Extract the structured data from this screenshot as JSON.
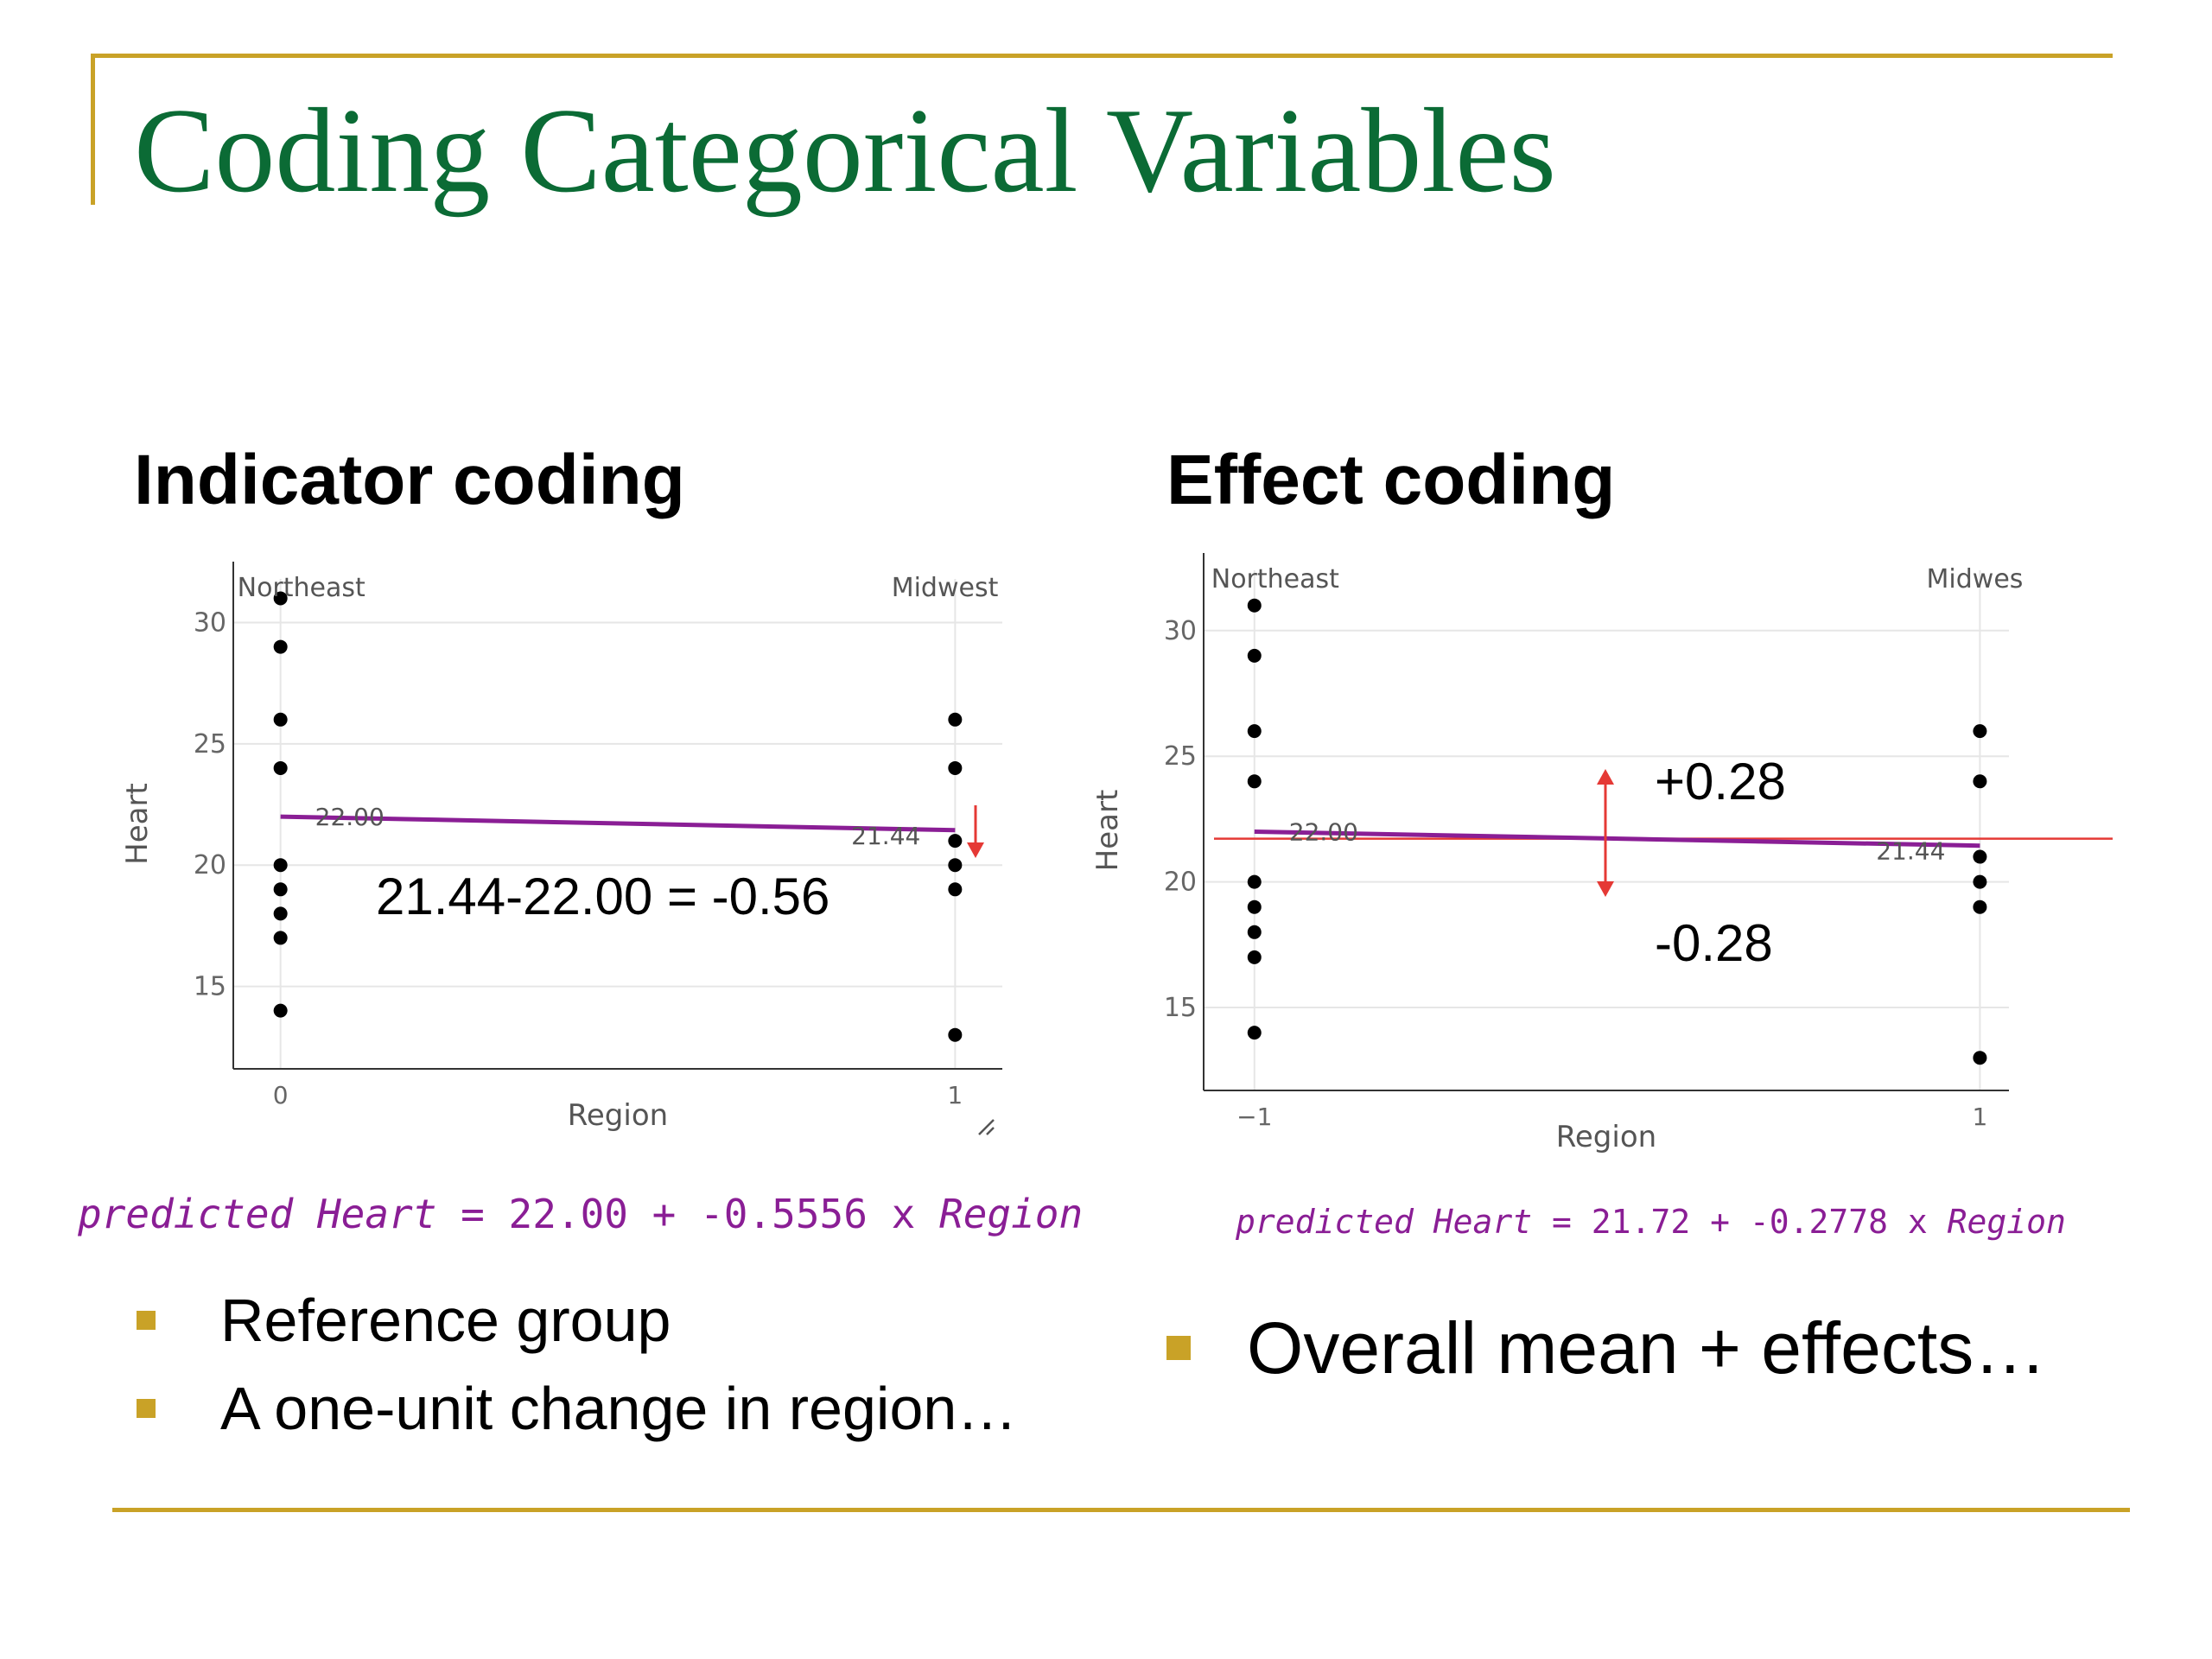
{
  "slide": {
    "title": "Coding Categorical Variables",
    "accent_color": "#c9a227",
    "title_color": "#0b6b35"
  },
  "left": {
    "heading": "Indicator coding",
    "formula": {
      "prefix": "predicted Heart",
      "middle": " = 22.00 + -0.5556 x ",
      "suffix": "Region",
      "color": "#8a1e95"
    },
    "bullets": [
      "Reference group",
      "A one-unit change in region…"
    ],
    "annotation": "21.44-22.00 = -0.56",
    "resize_icon": "resize-handle-icon"
  },
  "right": {
    "heading": "Effect coding",
    "formula": {
      "prefix": "predicted Heart",
      "middle": " = 21.72 + -0.2778 x ",
      "suffix": "Region",
      "color": "#8a1e95"
    },
    "bullets": [
      "Overall mean + effects…"
    ],
    "annotation_plus": "+0.28",
    "annotation_minus": "-0.28"
  },
  "chart_data": [
    {
      "type": "scatter",
      "xlabel": "Region",
      "ylabel": "Heart",
      "x_ticks": [
        0,
        1
      ],
      "x_tick_labels": [
        "0",
        "1"
      ],
      "y_ticks": [
        15,
        20,
        25,
        30
      ],
      "group_labels": [
        "Northeast",
        "Midwest"
      ],
      "xlim": [
        -0.07,
        1.07
      ],
      "ylim": [
        11.6,
        31.8
      ],
      "series": [
        {
          "x": 0,
          "values": [
            31,
            29,
            26,
            24,
            20,
            19,
            18,
            17,
            14
          ]
        },
        {
          "x": 1,
          "values": [
            26,
            24,
            21,
            20,
            19,
            13
          ]
        }
      ],
      "regression": {
        "x": [
          0,
          1
        ],
        "y": [
          22.0,
          21.44
        ],
        "labels": [
          "22.00",
          "21.44"
        ],
        "color": "#8a1e95"
      },
      "grid": true
    },
    {
      "type": "scatter",
      "xlabel": "Region",
      "ylabel": "Heart",
      "x_ticks": [
        -1,
        1
      ],
      "x_tick_labels": [
        "−1",
        "1"
      ],
      "y_ticks": [
        15,
        20,
        25,
        30
      ],
      "group_labels": [
        "Northeast",
        "Midwes"
      ],
      "xlim": [
        -1.14,
        1.08
      ],
      "ylim": [
        11.7,
        32.4
      ],
      "series": [
        {
          "x": -1,
          "values": [
            31,
            29,
            26,
            24,
            20,
            19,
            18,
            17,
            14
          ]
        },
        {
          "x": 1,
          "values": [
            26,
            24,
            21,
            20,
            19,
            13
          ]
        }
      ],
      "regression": {
        "x": [
          -1,
          1
        ],
        "y": [
          22.0,
          21.44
        ],
        "labels": [
          "22.00",
          "21.44"
        ],
        "color": "#8a1e95"
      },
      "mean_line": {
        "y": 21.72,
        "color": "#e53935"
      },
      "grid": true
    }
  ]
}
